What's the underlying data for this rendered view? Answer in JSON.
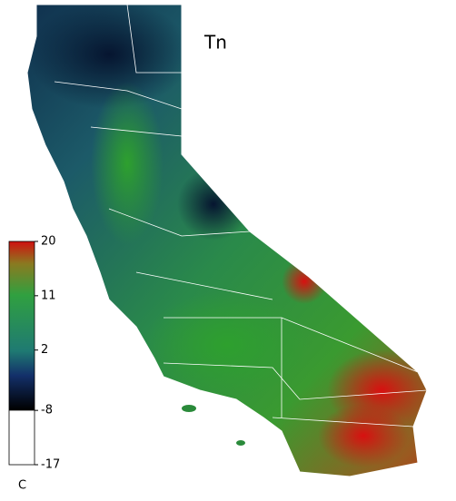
{
  "map": {
    "title": "Tn",
    "colorbar": {
      "lim": [
        -17,
        20
      ],
      "ticks": [
        20,
        11,
        2,
        -8,
        -17
      ],
      "unit": "C"
    }
  }
}
